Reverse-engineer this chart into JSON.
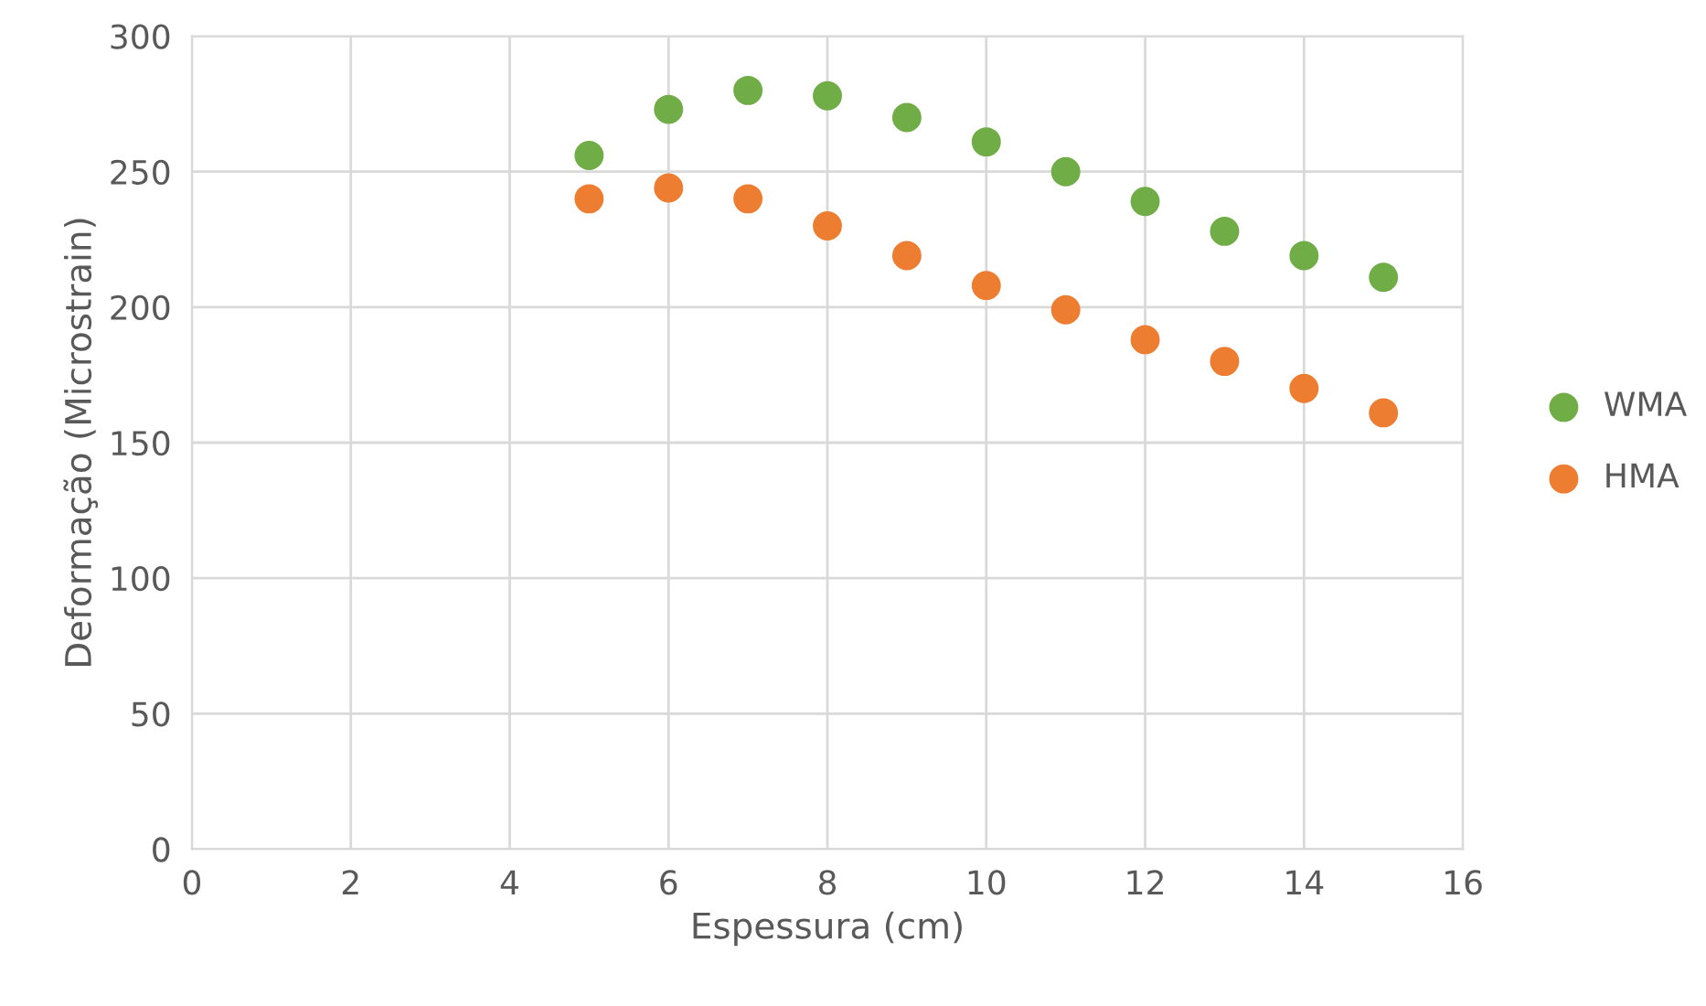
{
  "chart_data": {
    "type": "scatter",
    "xlabel": "Espessura (cm)",
    "ylabel": "Deformação (Microstrain)",
    "xlim": [
      0,
      16
    ],
    "xticks": [
      0,
      2,
      4,
      6,
      8,
      10,
      12,
      14,
      16
    ],
    "ylim": [
      0,
      300
    ],
    "yticks": [
      0,
      50,
      100,
      150,
      200,
      250,
      300
    ],
    "grid": true,
    "legend": "right",
    "marker": "circle",
    "x": [
      5,
      6,
      7,
      8,
      9,
      10,
      11,
      12,
      13,
      14,
      15
    ],
    "series": [
      {
        "name": "WMA",
        "color": "#70ad47",
        "values": [
          256,
          273,
          280,
          278,
          270,
          261,
          250,
          239,
          228,
          219,
          211
        ]
      },
      {
        "name": "HMA",
        "color": "#ed7d31",
        "values": [
          240,
          244,
          240,
          230,
          219,
          208,
          199,
          188,
          180,
          170,
          161
        ]
      }
    ]
  }
}
